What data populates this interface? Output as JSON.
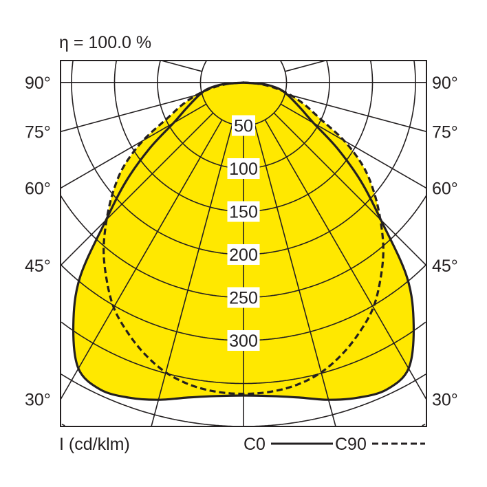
{
  "chart_data": {
    "type": "polar",
    "title": "η = 100.0 %",
    "unit_label": "I (cd/klm)",
    "angles_deg": [
      0,
      5,
      10,
      15,
      20,
      25,
      30,
      35,
      40,
      45,
      50,
      55,
      60,
      65,
      70,
      75,
      80,
      85,
      90
    ],
    "series": [
      {
        "name": "C0",
        "style": "solid",
        "values": [
          364,
          366,
          372,
          382,
          390,
          394,
          384,
          345,
          296,
          226,
          178,
          133,
          94,
          75,
          62,
          52,
          42,
          25,
          0
        ]
      },
      {
        "name": "C90",
        "style": "dashed",
        "values": [
          362,
          361,
          357,
          349,
          336,
          320,
          302,
          278,
          253,
          225,
          198,
          170,
          135,
          97,
          76,
          57,
          38,
          19,
          0
        ]
      }
    ],
    "radial_ticks": [
      "50",
      "100",
      "150",
      "200",
      "250",
      "300"
    ],
    "radial_grid": [
      50,
      100,
      150,
      200,
      250,
      300,
      350,
      400,
      450
    ],
    "angle_labels": [
      "90°",
      "75°",
      "60°",
      "45°",
      "30°"
    ],
    "angle_label_values": [
      90,
      75,
      60,
      45,
      30
    ],
    "grid_angle_step_deg": 15,
    "symmetric": true,
    "colors": {
      "fill": "#ffe800",
      "lines": "#231f20",
      "grid": "#231f20"
    }
  }
}
